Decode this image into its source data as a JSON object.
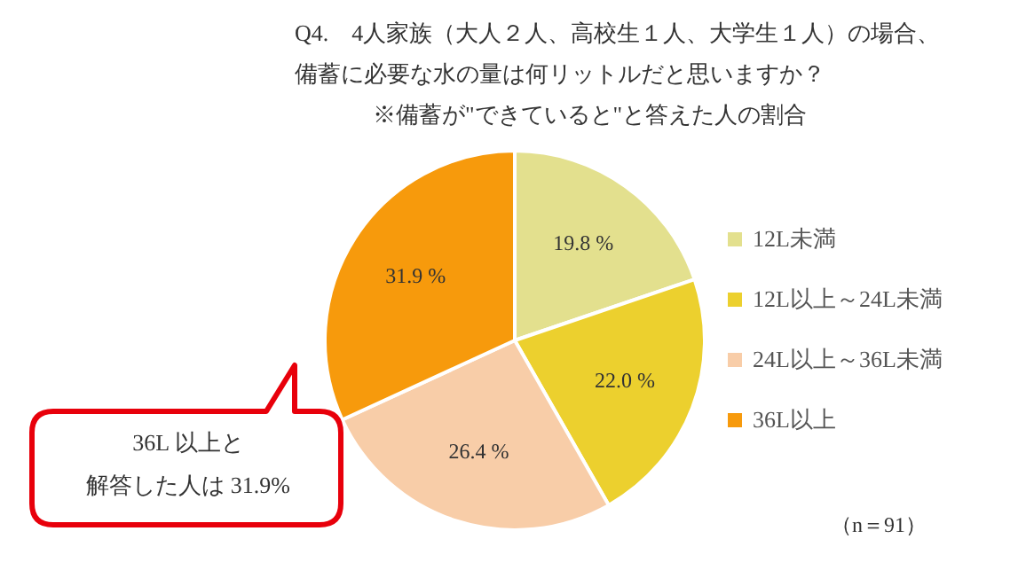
{
  "chart_data": {
    "type": "pie",
    "title": "Q4.　4人家族（大人２人、高校生１人、大学生１人）の場合、備蓄に必要な水の量は何リットルだと思いますか？",
    "subtitle": "※備蓄が\"できていると\"と答えた人の割合",
    "categories": [
      "12L未満",
      "12L以上～24L未満",
      "24L以上～36L未満",
      "36L以上"
    ],
    "values": [
      19.8,
      22.0,
      26.4,
      31.9
    ],
    "colors": [
      "#e3e08e",
      "#ecd02e",
      "#f8cda8",
      "#f79a0c"
    ],
    "value_labels": [
      "19.8 %",
      "22.0 %",
      "26.4 %",
      "31.9 %"
    ],
    "legend": "right",
    "annotations": [
      "36L 以上と",
      "解答した人は 31.9%",
      "（n＝91）"
    ]
  }
}
